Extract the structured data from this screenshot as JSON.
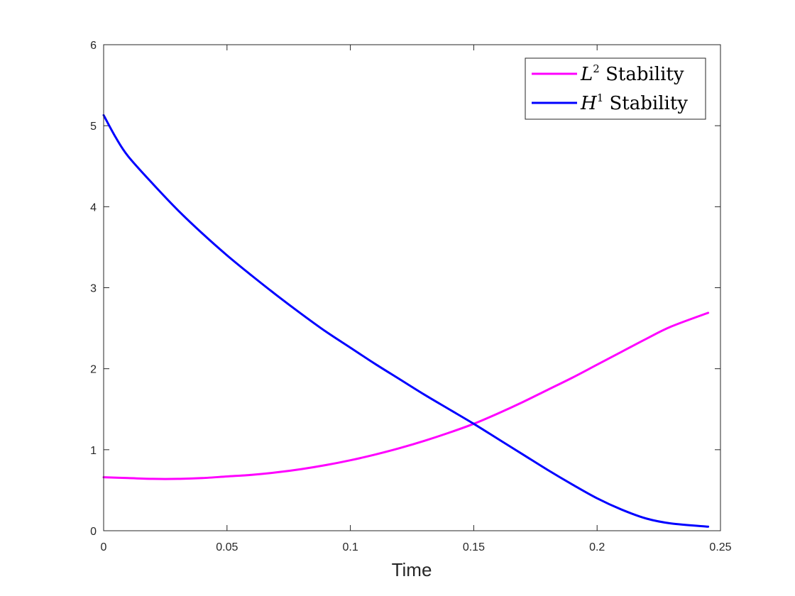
{
  "chart_data": {
    "type": "line",
    "xlabel": "Time",
    "ylabel": "",
    "xlim": [
      0,
      0.25
    ],
    "ylim": [
      0,
      6
    ],
    "xticks": [
      0,
      0.05,
      0.1,
      0.15,
      0.2,
      0.25
    ],
    "xtick_labels": [
      "0",
      "0.05",
      "0.1",
      "0.15",
      "0.2",
      "0.25"
    ],
    "yticks": [
      0,
      1,
      2,
      3,
      4,
      5,
      6
    ],
    "ytick_labels": [
      "0",
      "1",
      "2",
      "3",
      "4",
      "5",
      "6"
    ],
    "grid": false,
    "legend_position": "top-right",
    "series": [
      {
        "name": "L² Stability",
        "legend_base": "L",
        "legend_sup": "2",
        "legend_rest": " Stability",
        "color": "#ff00ff",
        "x": [
          0,
          0.01,
          0.02,
          0.03,
          0.04,
          0.05,
          0.06,
          0.07,
          0.08,
          0.09,
          0.1,
          0.11,
          0.12,
          0.13,
          0.14,
          0.15,
          0.16,
          0.17,
          0.18,
          0.19,
          0.2,
          0.21,
          0.22,
          0.23,
          0.245
        ],
        "y": [
          0.66,
          0.65,
          0.64,
          0.64,
          0.65,
          0.67,
          0.69,
          0.72,
          0.76,
          0.81,
          0.87,
          0.94,
          1.02,
          1.11,
          1.21,
          1.32,
          1.45,
          1.59,
          1.74,
          1.89,
          2.05,
          2.21,
          2.37,
          2.52,
          2.69
        ]
      },
      {
        "name": "H¹ Stability",
        "legend_base": "H",
        "legend_sup": "1",
        "legend_rest": " Stability",
        "color": "#0000ff",
        "x": [
          0,
          0.005,
          0.01,
          0.02,
          0.03,
          0.04,
          0.05,
          0.06,
          0.07,
          0.08,
          0.09,
          0.1,
          0.11,
          0.12,
          0.13,
          0.14,
          0.15,
          0.16,
          0.17,
          0.18,
          0.19,
          0.2,
          0.21,
          0.22,
          0.23,
          0.245
        ],
        "y": [
          5.13,
          4.85,
          4.62,
          4.28,
          3.96,
          3.67,
          3.4,
          3.15,
          2.91,
          2.68,
          2.46,
          2.26,
          2.06,
          1.87,
          1.68,
          1.5,
          1.32,
          1.13,
          0.94,
          0.75,
          0.57,
          0.4,
          0.26,
          0.15,
          0.09,
          0.05
        ]
      }
    ]
  }
}
